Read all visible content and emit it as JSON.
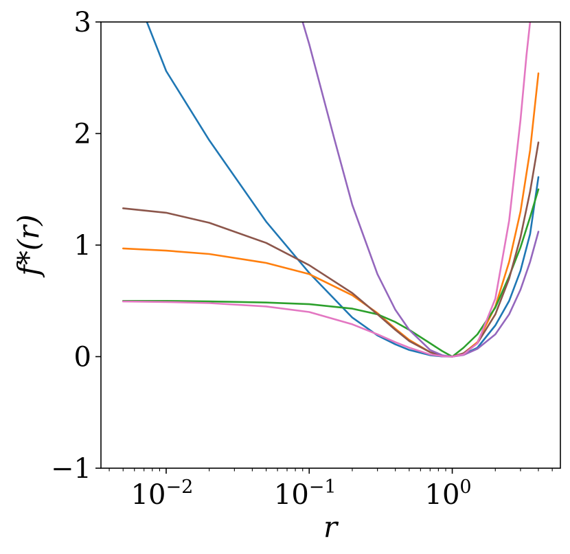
{
  "chart_data": {
    "type": "line",
    "title": "",
    "xlabel": "r",
    "ylabel": "f*(r)",
    "xscale": "log",
    "xlim": [
      0.0035,
      5.7
    ],
    "ylim": [
      -1,
      3
    ],
    "xticks": [
      {
        "value": 0.01,
        "base": "10",
        "exp": "−2"
      },
      {
        "value": 0.1,
        "base": "10",
        "exp": "−1"
      },
      {
        "value": 1,
        "base": "10",
        "exp": "0"
      }
    ],
    "yticks": [
      {
        "value": -1,
        "label": "−1"
      },
      {
        "value": 0,
        "label": "0"
      },
      {
        "value": 1,
        "label": "1"
      },
      {
        "value": 2,
        "label": "2"
      },
      {
        "value": 3,
        "label": "3"
      }
    ],
    "grid": false,
    "series": [
      {
        "color": "#1f77b4",
        "points": [
          [
            0.005,
            3.54
          ],
          [
            0.01,
            2.56
          ],
          [
            0.02,
            1.94
          ],
          [
            0.05,
            1.21
          ],
          [
            0.1,
            0.75
          ],
          [
            0.2,
            0.35
          ],
          [
            0.3,
            0.19
          ],
          [
            0.4,
            0.11
          ],
          [
            0.5,
            0.06
          ],
          [
            0.7,
            0.013
          ],
          [
            0.85,
            0.002
          ],
          [
            1,
            0
          ],
          [
            1.2,
            0.02
          ],
          [
            1.5,
            0.08
          ],
          [
            2,
            0.28
          ],
          [
            2.5,
            0.5
          ],
          [
            3,
            0.77
          ],
          [
            3.5,
            1.1
          ],
          [
            4,
            1.61
          ]
        ]
      },
      {
        "color": "#ff7f0e",
        "points": [
          [
            0.005,
            0.97
          ],
          [
            0.01,
            0.95
          ],
          [
            0.02,
            0.92
          ],
          [
            0.05,
            0.84
          ],
          [
            0.1,
            0.74
          ],
          [
            0.2,
            0.55
          ],
          [
            0.3,
            0.39
          ],
          [
            0.4,
            0.25
          ],
          [
            0.5,
            0.15
          ],
          [
            0.7,
            0.04
          ],
          [
            0.85,
            0.008
          ],
          [
            1,
            0
          ],
          [
            1.2,
            0.03
          ],
          [
            1.5,
            0.13
          ],
          [
            2,
            0.45
          ],
          [
            2.5,
            0.85
          ],
          [
            3,
            1.3
          ],
          [
            3.5,
            1.85
          ],
          [
            4,
            2.54
          ]
        ]
      },
      {
        "color": "#2ca02c",
        "points": [
          [
            0.005,
            0.5
          ],
          [
            0.01,
            0.5
          ],
          [
            0.02,
            0.495
          ],
          [
            0.05,
            0.485
          ],
          [
            0.1,
            0.47
          ],
          [
            0.2,
            0.43
          ],
          [
            0.3,
            0.38
          ],
          [
            0.4,
            0.31
          ],
          [
            0.5,
            0.24
          ],
          [
            0.7,
            0.12
          ],
          [
            0.85,
            0.05
          ],
          [
            1,
            0
          ],
          [
            1.2,
            0.08
          ],
          [
            1.5,
            0.2
          ],
          [
            2,
            0.44
          ],
          [
            2.5,
            0.72
          ],
          [
            3,
            0.98
          ],
          [
            3.5,
            1.25
          ],
          [
            4,
            1.5
          ]
        ]
      },
      {
        "color": "#8c564b",
        "points": [
          [
            0.005,
            1.33
          ],
          [
            0.01,
            1.29
          ],
          [
            0.02,
            1.2
          ],
          [
            0.05,
            1.02
          ],
          [
            0.1,
            0.82
          ],
          [
            0.2,
            0.57
          ],
          [
            0.3,
            0.38
          ],
          [
            0.4,
            0.24
          ],
          [
            0.5,
            0.14
          ],
          [
            0.7,
            0.04
          ],
          [
            0.85,
            0.008
          ],
          [
            1,
            0
          ],
          [
            1.2,
            0.03
          ],
          [
            1.5,
            0.12
          ],
          [
            2,
            0.38
          ],
          [
            2.5,
            0.7
          ],
          [
            3,
            1.07
          ],
          [
            3.5,
            1.48
          ],
          [
            4,
            1.92
          ]
        ]
      },
      {
        "color": "#9467bd",
        "points": [
          [
            0.09,
            3.0
          ],
          [
            0.1,
            2.8
          ],
          [
            0.15,
            1.95
          ],
          [
            0.2,
            1.36
          ],
          [
            0.3,
            0.74
          ],
          [
            0.4,
            0.42
          ],
          [
            0.5,
            0.24
          ],
          [
            0.7,
            0.06
          ],
          [
            0.85,
            0.012
          ],
          [
            1,
            0
          ],
          [
            1.2,
            0.015
          ],
          [
            1.5,
            0.07
          ],
          [
            2,
            0.2
          ],
          [
            2.5,
            0.38
          ],
          [
            3,
            0.6
          ],
          [
            3.5,
            0.85
          ],
          [
            4,
            1.12
          ]
        ]
      },
      {
        "color": "#e377c2",
        "points": [
          [
            0.005,
            0.495
          ],
          [
            0.01,
            0.49
          ],
          [
            0.02,
            0.48
          ],
          [
            0.05,
            0.45
          ],
          [
            0.1,
            0.4
          ],
          [
            0.2,
            0.29
          ],
          [
            0.3,
            0.2
          ],
          [
            0.4,
            0.13
          ],
          [
            0.5,
            0.08
          ],
          [
            0.7,
            0.02
          ],
          [
            0.85,
            0.004
          ],
          [
            1,
            0
          ],
          [
            1.2,
            0.02
          ],
          [
            1.5,
            0.12
          ],
          [
            2,
            0.52
          ],
          [
            2.5,
            1.22
          ],
          [
            3,
            2.12
          ],
          [
            3.3,
            2.7
          ],
          [
            3.5,
            3.0
          ]
        ]
      }
    ]
  }
}
